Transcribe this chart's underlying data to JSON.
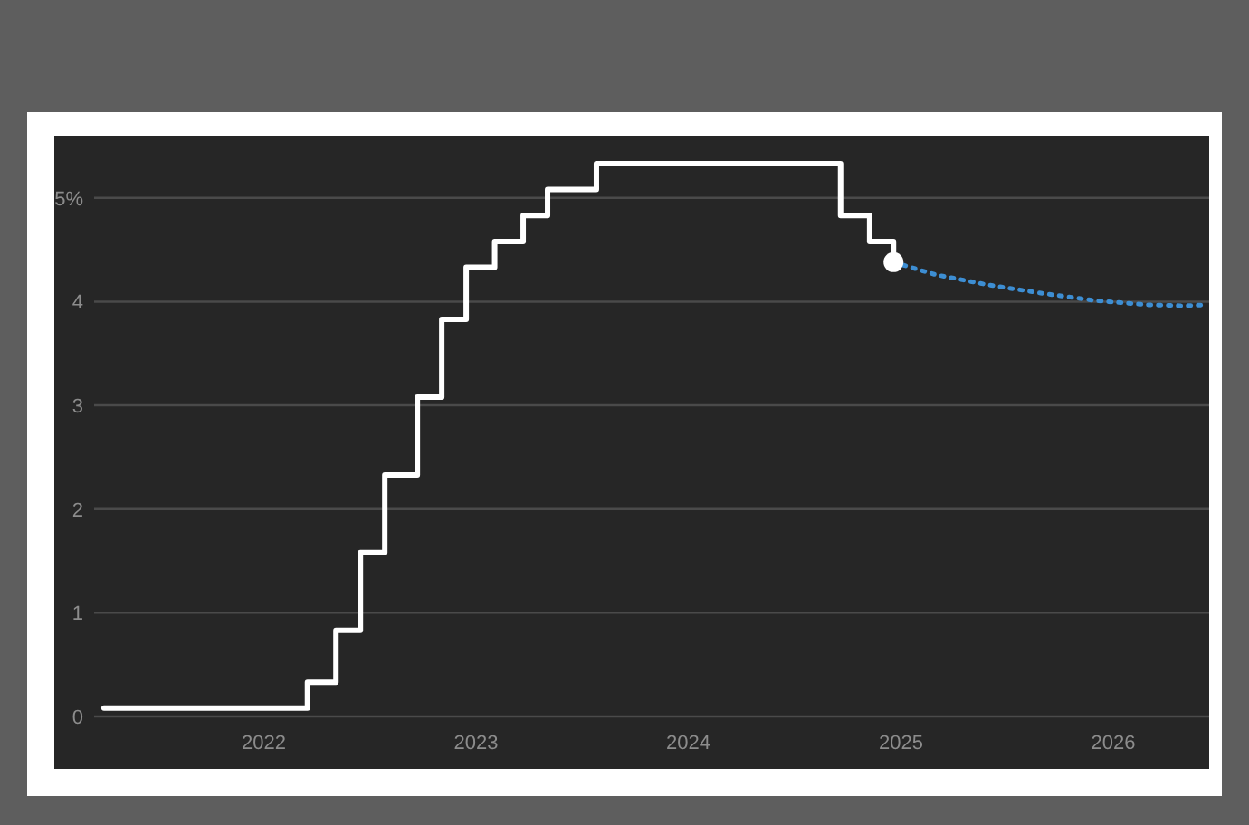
{
  "chart_data": {
    "type": "step",
    "x": [
      "2021-04-01",
      "2022-03-17",
      "2022-05-05",
      "2022-06-16",
      "2022-07-28",
      "2022-09-22",
      "2022-11-03",
      "2022-12-15",
      "2023-02-02",
      "2023-03-23",
      "2023-05-04",
      "2023-07-27",
      "2024-09-19",
      "2024-11-08",
      "2024-12-19"
    ],
    "series": [
      {
        "color": "#ffffff",
        "values": [
          0.08,
          0.33,
          0.83,
          1.58,
          2.33,
          3.08,
          3.83,
          4.33,
          4.58,
          4.83,
          5.08,
          5.33,
          4.83,
          4.58,
          4.33
        ]
      },
      {
        "type": "line",
        "line_style": "dotted",
        "color": "#3d8ed3",
        "x": [
          "2024-12-19",
          "2025-03-01",
          "2025-06-01",
          "2025-09-01",
          "2025-12-01",
          "2026-03-01",
          "2026-05-01",
          "2026-06-10"
        ],
        "values": [
          4.38,
          4.26,
          4.16,
          4.08,
          4.01,
          3.97,
          3.96,
          3.97
        ]
      },
      {
        "type": "scatter",
        "marker": "circle",
        "color": "#ffffff",
        "x": [
          "2024-12-19"
        ],
        "values": [
          4.38
        ]
      }
    ],
    "xlim": [
      "2021-03-15",
      "2026-06-15"
    ],
    "ylim": [
      0,
      5.6
    ],
    "xticks": [
      {
        "value": "2022-01-01",
        "label": "2022"
      },
      {
        "value": "2023-01-01",
        "label": "2023"
      },
      {
        "value": "2024-01-01",
        "label": "2024"
      },
      {
        "value": "2025-01-01",
        "label": "2025"
      },
      {
        "value": "2026-01-01",
        "label": "2026"
      }
    ],
    "yticks": [
      0,
      1,
      2,
      3,
      4,
      {
        "value": 5,
        "label": "5%"
      }
    ],
    "grid": "y"
  }
}
